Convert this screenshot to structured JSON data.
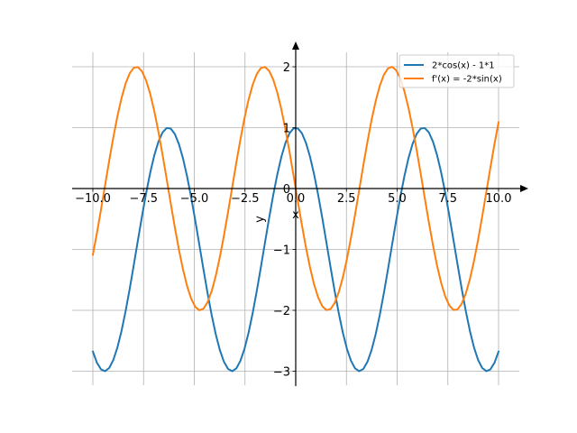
{
  "chart_data": {
    "type": "line",
    "title": "",
    "xlabel": "x",
    "ylabel": "y",
    "xlim": [
      -10,
      10
    ],
    "ylim": [
      -3,
      2
    ],
    "grid": true,
    "legend_position": "top-right",
    "x_ticks": [
      -10.0,
      -7.5,
      -5.0,
      -2.5,
      0.0,
      2.5,
      5.0,
      7.5,
      10.0
    ],
    "x_tick_labels": [
      "−10.0",
      "−7.5",
      "−5.0",
      "−2.5",
      "0.0",
      "2.5",
      "5.0",
      "7.5",
      "10.0"
    ],
    "y_ticks": [
      -3,
      -2,
      -1,
      0,
      1,
      2
    ],
    "y_tick_labels": [
      "−3",
      "−2",
      "−1",
      "0",
      "1",
      "2"
    ],
    "series": [
      {
        "name": "2*cos(x) - 1*1",
        "color": "#1f77b4",
        "expression": "2*cos(x) - 1",
        "x_range": [
          -10,
          10
        ],
        "sample_points": [
          {
            "x": -10,
            "y": -2.68
          },
          {
            "x": -9.42,
            "y": -3.0
          },
          {
            "x": -7.85,
            "y": -1.0
          },
          {
            "x": -6.28,
            "y": 1.0
          },
          {
            "x": -4.71,
            "y": -1.0
          },
          {
            "x": -3.14,
            "y": -3.0
          },
          {
            "x": -1.57,
            "y": -1.0
          },
          {
            "x": 0,
            "y": 1.0
          },
          {
            "x": 1.57,
            "y": -1.0
          },
          {
            "x": 3.14,
            "y": -3.0
          },
          {
            "x": 4.71,
            "y": -1.0
          },
          {
            "x": 6.28,
            "y": 1.0
          },
          {
            "x": 7.85,
            "y": -1.0
          },
          {
            "x": 9.42,
            "y": -3.0
          },
          {
            "x": 10,
            "y": -2.68
          }
        ]
      },
      {
        "name": "f'(x) = -2*sin(x)",
        "color": "#ff7f0e",
        "expression": "-2*sin(x)",
        "x_range": [
          -10,
          10
        ],
        "sample_points": [
          {
            "x": -10,
            "y": -1.09
          },
          {
            "x": -9.42,
            "y": 0.0
          },
          {
            "x": -7.85,
            "y": 2.0
          },
          {
            "x": -6.28,
            "y": 0.0
          },
          {
            "x": -4.71,
            "y": -2.0
          },
          {
            "x": -3.14,
            "y": 0.0
          },
          {
            "x": -1.57,
            "y": 2.0
          },
          {
            "x": 0,
            "y": 0.0
          },
          {
            "x": 1.57,
            "y": -2.0
          },
          {
            "x": 3.14,
            "y": 0.0
          },
          {
            "x": 4.71,
            "y": 2.0
          },
          {
            "x": 6.28,
            "y": 0.0
          },
          {
            "x": 7.85,
            "y": -2.0
          },
          {
            "x": 9.42,
            "y": 0.0
          },
          {
            "x": 10,
            "y": 1.09
          }
        ]
      }
    ]
  }
}
